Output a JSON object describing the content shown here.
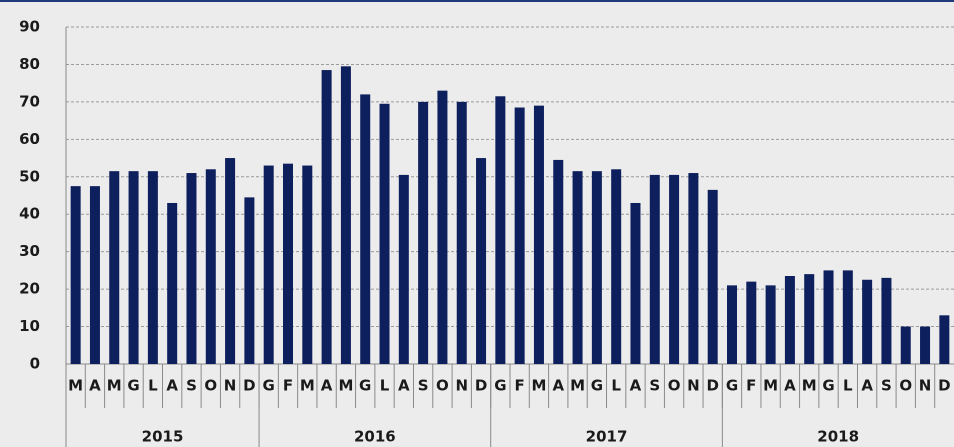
{
  "chart_data": {
    "type": "bar",
    "color": "#0d1f5c",
    "grid": true,
    "ylim": [
      0,
      90
    ],
    "yticks": [
      0,
      10,
      20,
      30,
      40,
      50,
      60,
      70,
      80,
      90
    ],
    "categories": [
      "M",
      "A",
      "M",
      "G",
      "L",
      "A",
      "S",
      "O",
      "N",
      "D",
      "G",
      "F",
      "M",
      "A",
      "M",
      "G",
      "L",
      "A",
      "S",
      "O",
      "N",
      "D",
      "G",
      "F",
      "M",
      "A",
      "M",
      "G",
      "L",
      "A",
      "S",
      "O",
      "N",
      "D",
      "G",
      "F",
      "M",
      "A",
      "M",
      "G",
      "L",
      "A",
      "S",
      "O",
      "N",
      "D"
    ],
    "groups": [
      {
        "label": "2015",
        "size": 10
      },
      {
        "label": "2016",
        "size": 12
      },
      {
        "label": "2017",
        "size": 12
      },
      {
        "label": "2018",
        "size": 12
      }
    ],
    "values": [
      47.5,
      47.5,
      51.5,
      51.5,
      51.5,
      43,
      51,
      52,
      55,
      44.5,
      53,
      53.5,
      53,
      78.5,
      79.5,
      72,
      69.5,
      50.5,
      70,
      73,
      70,
      55,
      71.5,
      68.5,
      69,
      54.5,
      51.5,
      51.5,
      52,
      43,
      50.5,
      50.5,
      51,
      46.5,
      21,
      22,
      21,
      23.5,
      24,
      25,
      25,
      22.5,
      23,
      10,
      10,
      13
    ]
  }
}
